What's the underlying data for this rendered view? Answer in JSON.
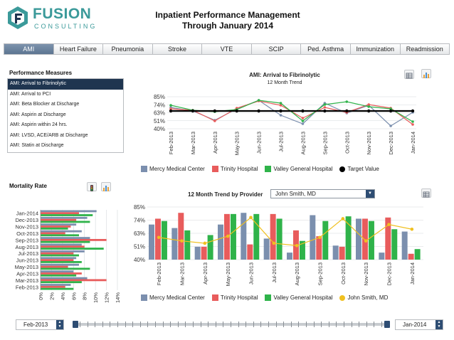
{
  "brand": {
    "name": "FUSION",
    "tagline": "CONSULTING"
  },
  "title": {
    "line1": "Inpatient Performance Management",
    "line2": "Through January 2014"
  },
  "tabs": [
    "AMI",
    "Heart Failure",
    "Pneumonia",
    "Stroke",
    "VTE",
    "SCIP",
    "Ped. Asthma",
    "Immunization",
    "Readmission"
  ],
  "active_tab": "AMI",
  "measures": {
    "heading": "Performance Measures",
    "items": [
      "AMI: Arrival to Fibrinolytic",
      "AMI: Arrival to PCI",
      "AMI: Beta Blocker at Discharge",
      "AMI: Aspirin at Discharge",
      "AMI: Aspirin within 24 hrs.",
      "AMI: LVSD, ACE/ARB at Discharge",
      "AMI: Statin at Discharge"
    ],
    "selected": "AMI: Arrival to Fibrinolytic"
  },
  "mortality": {
    "heading": "Mortality Rate"
  },
  "provider": {
    "label": "12 Month Trend by Provider",
    "selected": "John Smith, MD"
  },
  "colors": {
    "mercy": "#7b8fae",
    "trinity": "#e85c5c",
    "valley": "#2fb34a",
    "target": "#000000",
    "provider": "#f0c020",
    "active_tab": "#5c7591",
    "selected_row": "#1f3550",
    "brand": "#3b9a9a"
  },
  "icons": [
    "fusion-logo-icon",
    "table-icon",
    "bar-chart-icon",
    "traffic-light-icon",
    "dropdown-arrow-icon",
    "stepper-icon"
  ],
  "date_range": {
    "start": "Feb-2013",
    "end": "Jan-2014"
  },
  "chart_data": [
    {
      "type": "line",
      "title": "AMI: Arrival to Fibrinolytic",
      "subtitle": "12 Month Trend",
      "x": [
        "Feb-2013",
        "Mar-2013",
        "Apr-2013",
        "May-2013",
        "Jun-2013",
        "Jul-2013",
        "Aug-2013",
        "Sep-2013",
        "Oct-2013",
        "Nov-2013",
        "Dec-2013",
        "Jan-2014"
      ],
      "y_ticks": [
        "85%",
        "74%",
        "63%",
        "51%",
        "40%"
      ],
      "ylim": [
        40,
        85
      ],
      "grid": true,
      "legend_position": "bottom",
      "series": [
        {
          "name": "Mercy Medical Center",
          "values": [
            70,
            65,
            52,
            68,
            80,
            59,
            47,
            76,
            62,
            73,
            44,
            63
          ]
        },
        {
          "name": "Trinity Hospital",
          "values": [
            68,
            66,
            51,
            69,
            79,
            73,
            55,
            70,
            63,
            74,
            69,
            46
          ]
        },
        {
          "name": "Valley General Hospital",
          "values": [
            73,
            66,
            64,
            67,
            80,
            76,
            51,
            74,
            78,
            71,
            68,
            50
          ]
        },
        {
          "name": "Target Value",
          "values": [
            65,
            65,
            65,
            65,
            65,
            65,
            65,
            65,
            65,
            65,
            65,
            65
          ]
        }
      ]
    },
    {
      "type": "bar",
      "title": "12 Month Trend by Provider",
      "x": [
        "Feb-2013",
        "Mar-2013",
        "Apr-2013",
        "May-2013",
        "Jun-2013",
        "Jul-2013",
        "Aug-2013",
        "Sep-2013",
        "Oct-2013",
        "Nov-2013",
        "Dec-2013",
        "Jan-2014"
      ],
      "y_ticks": [
        "85%",
        "74%",
        "63%",
        "51%",
        "40%"
      ],
      "ylim": [
        40,
        85
      ],
      "grid": true,
      "legend_position": "bottom",
      "series": [
        {
          "name": "Mercy Medical Center",
          "values": [
            70,
            67,
            51,
            70,
            80,
            58,
            46,
            78,
            52,
            75,
            46,
            64
          ]
        },
        {
          "name": "Trinity Hospital",
          "values": [
            75,
            80,
            51,
            79,
            53,
            79,
            65,
            60,
            51,
            75,
            76,
            45
          ]
        },
        {
          "name": "Valley General Hospital",
          "values": [
            73,
            65,
            61,
            79,
            79,
            75,
            56,
            73,
            77,
            73,
            66,
            49
          ]
        },
        {
          "name": "John Smith, MD",
          "values": [
            59,
            56,
            54,
            60,
            76,
            54,
            52,
            59,
            75,
            56,
            70,
            66
          ]
        }
      ]
    },
    {
      "type": "bar",
      "orientation": "horizontal",
      "title": "Mortality Rate",
      "categories": [
        "Jan-2014",
        "Dec-2013",
        "Nov-2013",
        "Oct-2013",
        "Sep-2013",
        "Aug-2013",
        "Jul-2013",
        "Jun-2013",
        "May-2013",
        "Apr-2013",
        "Mar-2013",
        "Feb-2013"
      ],
      "x_ticks": [
        "0%",
        "2%",
        "4%",
        "6%",
        "8%",
        "10%",
        "12%",
        "14%"
      ],
      "xlim": [
        0,
        14
      ],
      "series": [
        {
          "name": "Mercy Medical Center",
          "values": [
            10.2,
            8.5,
            6.5,
            7.5,
            9,
            7.5,
            8,
            6.5,
            7,
            6,
            8.5,
            5.5
          ]
        },
        {
          "name": "Trinity Hospital",
          "values": [
            7,
            6.5,
            5.5,
            4.5,
            12,
            8,
            6,
            6,
            5,
            7.5,
            12,
            4.5
          ]
        },
        {
          "name": "Valley General Hospital",
          "values": [
            9.5,
            9,
            5,
            7,
            9,
            11.5,
            7,
            7.5,
            9,
            6.5,
            7.5,
            6
          ]
        }
      ]
    }
  ]
}
